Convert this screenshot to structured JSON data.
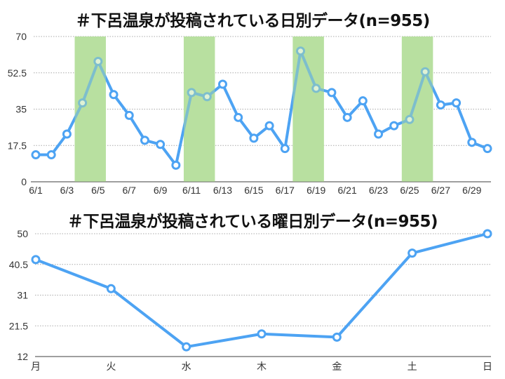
{
  "chart_data": [
    {
      "type": "line",
      "title": "＃下呂温泉が投稿されている日別データ(n=955)",
      "xlabel": "",
      "ylabel": "",
      "ylim": [
        0,
        70
      ],
      "yticks": [
        "0",
        "17.5",
        "35",
        "52.5",
        "70"
      ],
      "xticks": [
        "6/1",
        "6/3",
        "6/5",
        "6/7",
        "6/9",
        "6/11",
        "6/13",
        "6/15",
        "6/17",
        "6/19",
        "6/21",
        "6/23",
        "6/25",
        "6/27",
        "6/29"
      ],
      "grid": true,
      "legend": "none",
      "x": [
        "6/1",
        "6/2",
        "6/3",
        "6/4",
        "6/5",
        "6/6",
        "6/7",
        "6/8",
        "6/9",
        "6/10",
        "6/11",
        "6/12",
        "6/13",
        "6/14",
        "6/15",
        "6/16",
        "6/17",
        "6/18",
        "6/19",
        "6/20",
        "6/21",
        "6/22",
        "6/23",
        "6/24",
        "6/25",
        "6/26",
        "6/27",
        "6/28",
        "6/29",
        "6/30"
      ],
      "values": [
        13,
        13,
        23,
        38,
        58,
        42,
        32,
        20,
        18,
        8,
        43,
        41,
        47,
        31,
        21,
        27,
        16,
        63,
        45,
        43,
        31,
        39,
        23,
        27,
        30,
        53,
        37,
        38,
        19,
        16
      ],
      "highlight_bands": [
        [
          "6/4",
          "6/5"
        ],
        [
          "6/11",
          "6/12"
        ],
        [
          "6/18",
          "6/19"
        ],
        [
          "6/25",
          "6/26"
        ]
      ],
      "colors": {
        "line": "#4da3f3",
        "band": "#b8e0a0"
      }
    },
    {
      "type": "line",
      "title": "＃下呂温泉が投稿されている曜日別データ(n=955)",
      "xlabel": "",
      "ylabel": "",
      "ylim": [
        12,
        50
      ],
      "yticks": [
        "12",
        "21.5",
        "31",
        "40.5",
        "50"
      ],
      "grid": true,
      "legend": "none",
      "categories": [
        "月",
        "火",
        "水",
        "木",
        "金",
        "土",
        "日"
      ],
      "values": [
        42,
        33,
        15,
        19,
        18,
        44,
        50
      ],
      "colors": {
        "line": "#4da3f3"
      }
    }
  ]
}
